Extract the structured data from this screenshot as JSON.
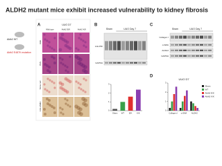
{
  "title": "ALDH2 mutant mice exhibit increased vulnerability to kidney fibrosis",
  "mice": {
    "wt": "Aldh2 WT",
    "mutant": "Aldh2 E487K mutation"
  },
  "panel_a": {
    "label": "A",
    "header": "UUO D7",
    "columns": [
      "Wild type",
      "Aldh2 E/K",
      "Aldh2 K/K"
    ],
    "rows": [
      "H&E",
      "PAS",
      "Sirius red",
      "Anti-αSMA"
    ]
  },
  "panel_b": {
    "label": "B",
    "blot_header": [
      "Sham",
      "UUO Day 7"
    ],
    "blot_rows": [
      "Anti-PDI",
      "GAPDH"
    ],
    "chart": {
      "type": "bar",
      "categories": [
        "Sham",
        "WT",
        "E/K",
        "K/K"
      ],
      "values": [
        0.2,
        1,
        1.6,
        2.4
      ],
      "colors": [
        "#555555",
        "#3aa04a",
        "#e03030",
        "#8a3fb0"
      ],
      "ylim": [
        0,
        3
      ],
      "yticks": [
        0,
        1,
        2,
        3
      ]
    }
  },
  "panel_c": {
    "label": "C",
    "blot_header": [
      "Sham",
      "UUO Day 7"
    ],
    "blot_rows": [
      "Collagen I",
      "α-SMA",
      "ALDH2",
      "GAPDH"
    ]
  },
  "panel_d": {
    "label": "D",
    "chart": {
      "type": "bar",
      "title": "UUO D7",
      "categories": [
        "Collagen I",
        "α-SMA",
        "ALDH2"
      ],
      "series": [
        {
          "name": "Sham",
          "color": "#222222",
          "values": [
            0.3,
            0.3,
            1
          ]
        },
        {
          "name": "WT",
          "color": "#3aa04a",
          "values": [
            1,
            1,
            0.8
          ]
        },
        {
          "name": "Aldh2 E/K",
          "color": "#e03030",
          "values": [
            1.8,
            1.6,
            0.5
          ]
        },
        {
          "name": "Aldh2 K/K",
          "color": "#8a3fb0",
          "values": [
            2.6,
            2.2,
            0.3
          ]
        }
      ],
      "ylim": [
        0,
        3
      ],
      "yticks": [
        0,
        1,
        2,
        3
      ]
    }
  }
}
